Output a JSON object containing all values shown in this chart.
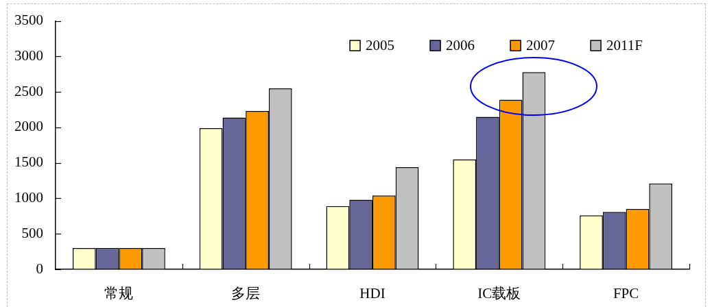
{
  "chart_data": {
    "type": "bar",
    "categories": [
      "常规",
      "多层",
      "HDI",
      "IC载板",
      "FPC"
    ],
    "series": [
      {
        "name": "2005",
        "color": "#ffffcc",
        "values": [
          300,
          1990,
          890,
          1550,
          760
        ]
      },
      {
        "name": "2006",
        "color": "#666699",
        "values": [
          300,
          2140,
          980,
          2150,
          810
        ]
      },
      {
        "name": "2007",
        "color": "#ff9900",
        "values": [
          300,
          2230,
          1040,
          2390,
          850
        ]
      },
      {
        "name": "2011F",
        "color": "#c0c0c0",
        "values": [
          300,
          2550,
          1440,
          2780,
          1210
        ]
      }
    ],
    "ylim": [
      0,
      3500
    ],
    "yticks": [
      0,
      500,
      1000,
      1500,
      2000,
      2500,
      3000,
      3500
    ],
    "legend": "top right"
  }
}
